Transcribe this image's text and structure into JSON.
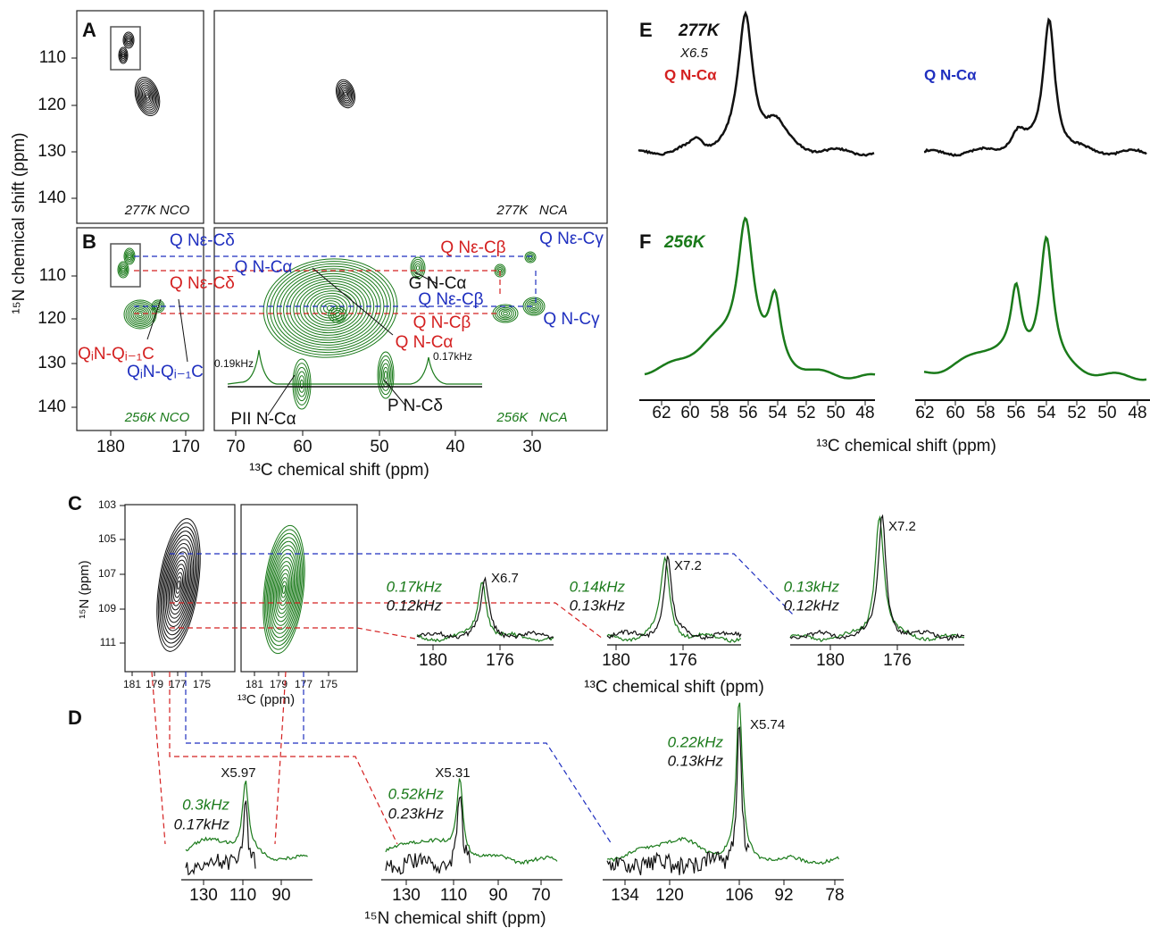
{
  "panel_labels": [
    "A",
    "B",
    "C",
    "D",
    "E",
    "F"
  ],
  "ab": {
    "y_label": "¹⁵N chemical shift (ppm)",
    "x_label": "¹³C chemical shift (ppm)",
    "y_ticks_a": [
      110,
      120,
      130,
      140
    ],
    "y_ticks_b": [
      110,
      120,
      130,
      140
    ],
    "x_ticks_nco": [
      180,
      170
    ],
    "x_ticks_nca": [
      70,
      60,
      50,
      40,
      30
    ],
    "tags": [
      "277K NCO",
      "277K   NCA",
      "256K NCO",
      "256K   NCA"
    ],
    "annotations": [
      "Q Nε-Cδ",
      "Q Nε-Cδ",
      "QᵢN-Qᵢ₋₁C",
      "QᵢN-Qᵢ₋₁C",
      "Q N-Cα",
      "Q Nε-Cβ",
      "Q Nε-Cγ",
      "G N-Cα",
      "Q Nε-Cβ",
      "Q N-Cβ",
      "Q N-Cγ",
      "Q N-Cα",
      "0.19kHz",
      "0.17kHz",
      "PII N-Cα",
      "P N-Cδ"
    ]
  },
  "ef": {
    "temp_e": "277K",
    "scale_e": "X6.5",
    "label_left": "Q N-Cα",
    "label_right": "Q N-Cα",
    "temp_f": "256K",
    "x_ticks_left": [
      62,
      60,
      58,
      56,
      54,
      52,
      50,
      48
    ],
    "x_ticks_right": [
      62,
      60,
      58,
      56,
      54,
      52,
      50,
      48
    ],
    "x_label": "¹³C chemical shift (ppm)"
  },
  "c": {
    "y_label": "¹⁵N (ppm)",
    "y_ticks": [
      103,
      105,
      107,
      109,
      111
    ],
    "x_ticks_left": [
      181,
      179,
      177,
      175
    ],
    "x_ticks_right": [
      181,
      179,
      177,
      175
    ],
    "x_label_small": "¹³C (ppm)",
    "spectra": [
      {
        "scale": "X6.7",
        "green": "0.17kHz",
        "black": "0.12kHz",
        "ticks": [
          180,
          176
        ]
      },
      {
        "scale": "X7.2",
        "green": "0.14kHz",
        "black": "0.13kHz",
        "ticks": [
          180,
          176
        ]
      },
      {
        "scale": "X7.2",
        "green": "0.13kHz",
        "black": "0.12kHz",
        "ticks": [
          180,
          176
        ]
      }
    ],
    "x_label": "¹³C chemical shift (ppm)"
  },
  "d": {
    "spectra": [
      {
        "scale": "X5.97",
        "green": "0.3kHz",
        "black": "0.17kHz",
        "ticks": [
          130,
          110,
          90
        ]
      },
      {
        "scale": "X5.31",
        "green": "0.52kHz",
        "black": "0.23kHz",
        "ticks": [
          130,
          110,
          90,
          70
        ]
      },
      {
        "scale": "X5.74",
        "green": "0.22kHz",
        "black": "0.13kHz",
        "ticks": [
          134,
          120,
          106,
          92,
          78
        ]
      }
    ],
    "x_label": "¹⁵N chemical shift (ppm)"
  }
}
